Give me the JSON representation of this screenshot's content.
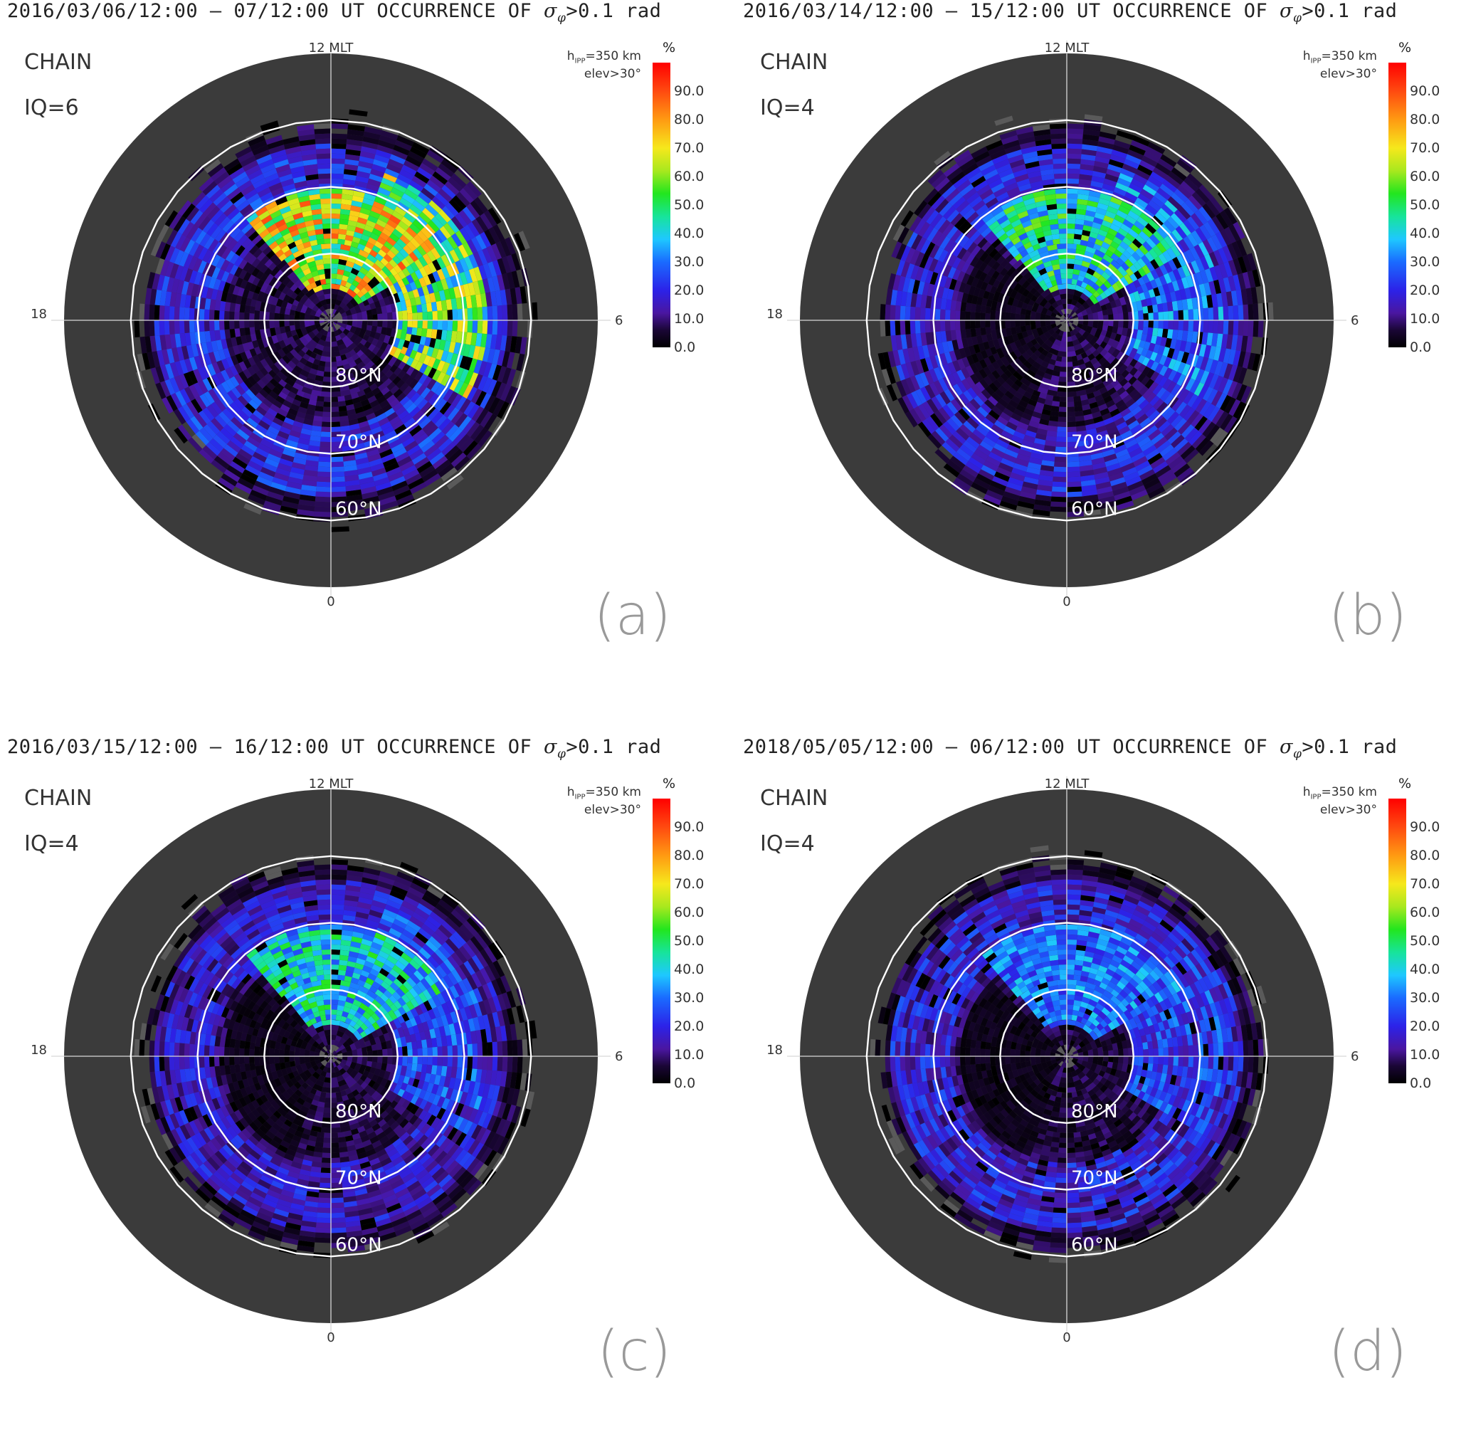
{
  "chart_data": [
    {
      "type": "heatmap",
      "panel_label": "(a)",
      "title_date": "2016/03/06/12:00 – 07/12:00 UT",
      "title_quantity": "OCCURRENCE OF",
      "title_symbol": "σ",
      "title_subscript": "φ",
      "title_threshold": ">0.1 rad",
      "network": "CHAIN",
      "iq": "IQ=6",
      "hipp_line1_prefix": "h",
      "hipp_line1_sub": "IPP",
      "hipp_line1_suffix": "=350 km",
      "hipp_line2": "elev>30°",
      "mlt_labels": {
        "top": "12 MLT",
        "left": "18",
        "right": "6",
        "bottom": "0"
      },
      "lat_labels": [
        "80°N",
        "70°N",
        "60°N"
      ],
      "colorbar": {
        "unit": "%",
        "ticks": [
          "90.0",
          "80.0",
          "70.0",
          "60.0",
          "50.0",
          "40.0",
          "30.0",
          "20.0",
          "10.0",
          "0.0"
        ],
        "range": [
          0,
          100
        ]
      },
      "features": {
        "dayside_peak_percent": 90,
        "afternoon_mean_percent": 55,
        "oval_mean_percent": 22,
        "night_mean_percent": 8
      }
    },
    {
      "type": "heatmap",
      "panel_label": "(b)",
      "title_date": "2016/03/14/12:00 – 15/12:00 UT",
      "title_quantity": "OCCURRENCE OF",
      "title_symbol": "σ",
      "title_subscript": "φ",
      "title_threshold": ">0.1 rad",
      "network": "CHAIN",
      "iq": "IQ=4",
      "hipp_line1_prefix": "h",
      "hipp_line1_sub": "IPP",
      "hipp_line1_suffix": "=350 km",
      "hipp_line2": "elev>30°",
      "mlt_labels": {
        "top": "12 MLT",
        "left": "18",
        "right": "6",
        "bottom": "0"
      },
      "lat_labels": [
        "80°N",
        "70°N",
        "60°N"
      ],
      "colorbar": {
        "unit": "%",
        "ticks": [
          "90.0",
          "80.0",
          "70.0",
          "60.0",
          "50.0",
          "40.0",
          "30.0",
          "20.0",
          "10.0",
          "0.0"
        ],
        "range": [
          0,
          100
        ]
      },
      "features": {
        "dayside_peak_percent": 60,
        "afternoon_mean_percent": 30,
        "oval_mean_percent": 20,
        "night_mean_percent": 8
      }
    },
    {
      "type": "heatmap",
      "panel_label": "(c)",
      "title_date": "2016/03/15/12:00 – 16/12:00 UT",
      "title_quantity": "OCCURRENCE OF",
      "title_symbol": "σ",
      "title_subscript": "φ",
      "title_threshold": ">0.1 rad",
      "network": "CHAIN",
      "iq": "IQ=4",
      "hipp_line1_prefix": "h",
      "hipp_line1_sub": "IPP",
      "hipp_line1_suffix": "=350 km",
      "hipp_line2": "elev>30°",
      "mlt_labels": {
        "top": "12 MLT",
        "left": "18",
        "right": "6",
        "bottom": "0"
      },
      "lat_labels": [
        "80°N",
        "70°N",
        "60°N"
      ],
      "colorbar": {
        "unit": "%",
        "ticks": [
          "90.0",
          "80.0",
          "70.0",
          "60.0",
          "50.0",
          "40.0",
          "30.0",
          "20.0",
          "10.0",
          "0.0"
        ],
        "range": [
          0,
          100
        ]
      },
      "features": {
        "dayside_peak_percent": 55,
        "afternoon_mean_percent": 25,
        "oval_mean_percent": 18,
        "night_mean_percent": 7
      }
    },
    {
      "type": "heatmap",
      "panel_label": "(d)",
      "title_date": "2018/05/05/12:00 – 06/12:00 UT",
      "title_quantity": "OCCURRENCE OF",
      "title_symbol": "σ",
      "title_subscript": "φ",
      "title_threshold": ">0.1 rad",
      "network": "CHAIN",
      "iq": "IQ=4",
      "hipp_line1_prefix": "h",
      "hipp_line1_sub": "IPP",
      "hipp_line1_suffix": "=350 km",
      "hipp_line2": "elev>30°",
      "mlt_labels": {
        "top": "12 MLT",
        "left": "18",
        "right": "6",
        "bottom": "0"
      },
      "lat_labels": [
        "80°N",
        "70°N",
        "60°N"
      ],
      "colorbar": {
        "unit": "%",
        "ticks": [
          "90.0",
          "80.0",
          "70.0",
          "60.0",
          "50.0",
          "40.0",
          "30.0",
          "20.0",
          "10.0",
          "0.0"
        ],
        "range": [
          0,
          100
        ]
      },
      "features": {
        "dayside_peak_percent": 40,
        "afternoon_mean_percent": 24,
        "oval_mean_percent": 20,
        "night_mean_percent": 7
      }
    }
  ]
}
